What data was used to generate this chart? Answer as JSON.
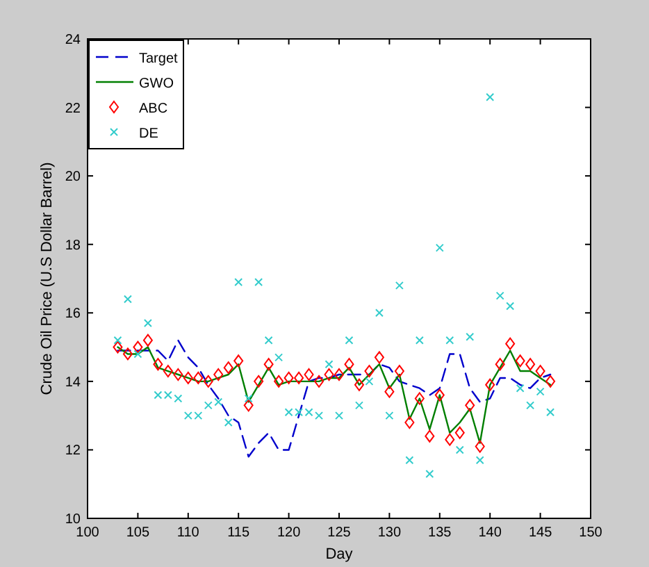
{
  "chart_data": {
    "type": "line",
    "xlabel": "Day",
    "ylabel": "Crude Oil Price (U.S Dollar Barrel)",
    "x": [
      103,
      104,
      105,
      106,
      107,
      108,
      109,
      110,
      111,
      112,
      113,
      114,
      115,
      116,
      117,
      118,
      119,
      120,
      121,
      122,
      123,
      124,
      125,
      126,
      127,
      128,
      129,
      130,
      131,
      132,
      133,
      134,
      135,
      136,
      137,
      138,
      139,
      140,
      141,
      142,
      143,
      144,
      145,
      146
    ],
    "xlim": [
      100,
      150
    ],
    "xticks": [
      100,
      105,
      110,
      115,
      120,
      125,
      130,
      135,
      140,
      145,
      150
    ],
    "ylim": [
      10,
      24
    ],
    "yticks": [
      10,
      12,
      14,
      16,
      18,
      20,
      22,
      24
    ],
    "grid": false,
    "legend": "top left",
    "series": [
      {
        "name": "Target",
        "color": "#0000cc",
        "line_style": "dashed",
        "marker": "none",
        "values": [
          14.9,
          14.9,
          14.9,
          14.9,
          14.9,
          14.6,
          15.2,
          14.7,
          14.4,
          13.9,
          13.5,
          13.0,
          12.8,
          11.8,
          12.2,
          12.5,
          12.0,
          12.0,
          13.0,
          14.0,
          14.1,
          14.1,
          14.2,
          14.2,
          14.2,
          14.2,
          14.5,
          14.4,
          14.0,
          13.9,
          13.8,
          13.6,
          13.8,
          14.8,
          14.8,
          13.8,
          13.4,
          13.5,
          14.1,
          14.1,
          13.9,
          13.8,
          14.1,
          14.2
        ]
      },
      {
        "name": "GWO",
        "color": "#007f00",
        "line_style": "solid",
        "marker": "none",
        "values": [
          15.0,
          14.8,
          14.8,
          15.0,
          14.4,
          14.3,
          14.2,
          14.1,
          14.0,
          14.0,
          14.1,
          14.2,
          14.5,
          13.4,
          13.9,
          14.4,
          13.9,
          14.0,
          14.0,
          14.0,
          14.0,
          14.1,
          14.1,
          14.4,
          13.9,
          14.2,
          14.5,
          13.8,
          14.2,
          12.9,
          13.5,
          12.6,
          13.6,
          12.5,
          12.8,
          13.2,
          12.2,
          13.9,
          14.4,
          14.9,
          14.3,
          14.3,
          14.1,
          13.9
        ]
      },
      {
        "name": "ABC",
        "type": "scatter",
        "color": "#ff0000",
        "marker": "diamond",
        "values": [
          15.0,
          14.8,
          15.0,
          15.2,
          14.5,
          14.3,
          14.2,
          14.1,
          14.1,
          14.0,
          14.2,
          14.4,
          14.6,
          13.3,
          14.0,
          14.5,
          14.0,
          14.1,
          14.1,
          14.2,
          14.0,
          14.2,
          14.2,
          14.5,
          13.9,
          14.3,
          14.7,
          13.7,
          14.3,
          12.8,
          13.5,
          12.4,
          13.6,
          12.3,
          12.5,
          13.3,
          12.1,
          13.9,
          14.5,
          15.1,
          14.6,
          14.5,
          14.3,
          14.0
        ]
      },
      {
        "name": "DE",
        "type": "scatter",
        "color": "#33cccc",
        "marker": "cross",
        "values": [
          15.2,
          16.4,
          14.8,
          15.7,
          13.6,
          13.6,
          13.5,
          13.0,
          13.0,
          13.3,
          13.4,
          12.8,
          16.9,
          13.5,
          16.9,
          15.2,
          14.7,
          13.1,
          13.1,
          13.1,
          13.0,
          14.5,
          13.0,
          15.2,
          13.3,
          14.0,
          16.0,
          13.0,
          16.8,
          11.7,
          15.2,
          11.3,
          17.9,
          15.2,
          12.0,
          15.3,
          11.7,
          22.3,
          16.5,
          16.2,
          13.8,
          13.3,
          13.7,
          13.1
        ]
      }
    ]
  }
}
